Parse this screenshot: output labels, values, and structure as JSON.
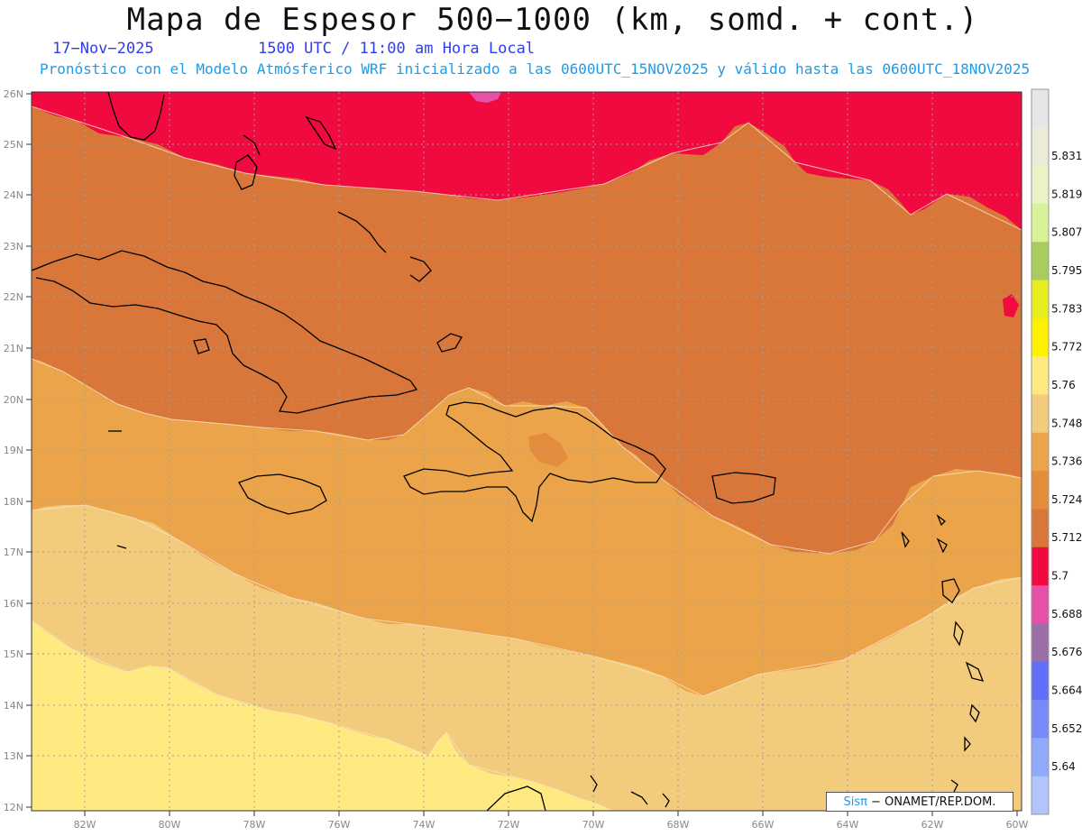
{
  "title": "Mapa de Espesor 500−1000 (km, somd. + cont.)",
  "date": "17−Nov−2025",
  "time": "1500 UTC / 11:00 am Hora Local",
  "subtitle": "Pronóstico con el Modelo Atmósferico WRF inicializado a las 0600UTC_15NOV2025 y válido hasta las  0600UTC_18NOV2025",
  "credit": {
    "brand": "Sisπ",
    "org": "− ONAMET/REP.DOM."
  },
  "lat_labels": [
    "26N",
    "25N",
    "24N",
    "23N",
    "22N",
    "21N",
    "20N",
    "19N",
    "18N",
    "17N",
    "16N",
    "15N",
    "14N",
    "13N",
    "12N"
  ],
  "lon_labels": [
    "82W",
    "80W",
    "78W",
    "76W",
    "74W",
    "72W",
    "70W",
    "68W",
    "66W",
    "64W",
    "62W",
    "60W"
  ],
  "colorbar": [
    {
      "color": "#e6e6e6",
      "label": ""
    },
    {
      "color": "#ececd8",
      "label": "5.831"
    },
    {
      "color": "#eaf2c6",
      "label": "5.819"
    },
    {
      "color": "#d8f29a",
      "label": "5.807"
    },
    {
      "color": "#a8cc5e",
      "label": "5.795"
    },
    {
      "color": "#e6ee1e",
      "label": "5.783"
    },
    {
      "color": "#fff000",
      "label": "5.772"
    },
    {
      "color": "#ffea82",
      "label": "5.76"
    },
    {
      "color": "#f2cb7c",
      "label": "5.748"
    },
    {
      "color": "#eca44a",
      "label": "5.736"
    },
    {
      "color": "#e38c3c",
      "label": "5.724"
    },
    {
      "color": "#d9763a",
      "label": "5.712"
    },
    {
      "color": "#f00a40",
      "label": "5.7"
    },
    {
      "color": "#e650a6",
      "label": "5.688"
    },
    {
      "color": "#9a6ea6",
      "label": "5.676"
    },
    {
      "color": "#6270f8",
      "label": "5.664"
    },
    {
      "color": "#788af8",
      "label": "5.652"
    },
    {
      "color": "#90aafa",
      "label": "5.64"
    },
    {
      "color": "#b2c4fa",
      "label": ""
    }
  ]
}
